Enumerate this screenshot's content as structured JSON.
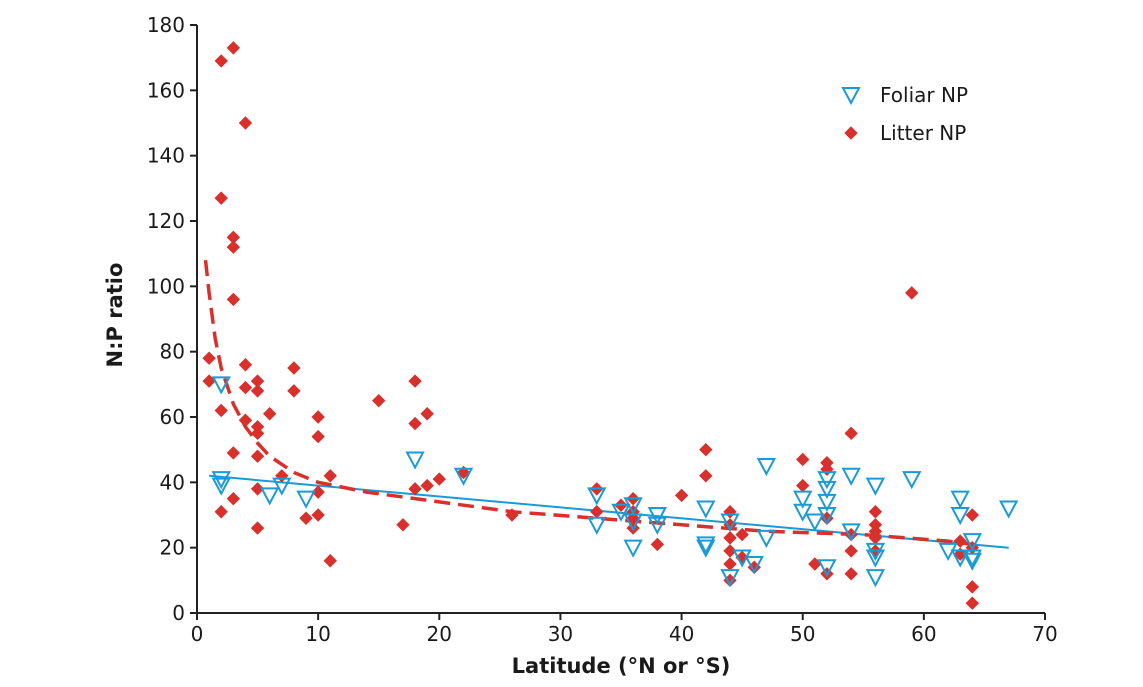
{
  "chart_data": {
    "type": "scatter",
    "xlabel": "Latitude (°N or °S)",
    "ylabel": "N:P ratio",
    "xlim": [
      0,
      70
    ],
    "ylim": [
      0,
      180
    ],
    "x_ticks": [
      0,
      10,
      20,
      30,
      40,
      50,
      60,
      70
    ],
    "y_ticks": [
      0,
      20,
      40,
      60,
      80,
      100,
      120,
      140,
      160,
      180
    ],
    "grid": false,
    "legend_position": "top-right",
    "series": [
      {
        "name": "Foliar NP",
        "marker": "open-down-triangle",
        "color": "#1a9ad6",
        "points": [
          [
            2,
            70
          ],
          [
            2,
            41
          ],
          [
            2,
            39
          ],
          [
            6,
            36
          ],
          [
            7,
            39
          ],
          [
            9,
            35
          ],
          [
            18,
            47
          ],
          [
            22,
            42
          ],
          [
            33,
            36
          ],
          [
            33,
            27
          ],
          [
            35,
            31
          ],
          [
            36,
            33
          ],
          [
            36,
            28
          ],
          [
            36,
            20
          ],
          [
            38,
            30
          ],
          [
            38,
            27
          ],
          [
            42,
            32
          ],
          [
            42,
            21
          ],
          [
            42,
            20
          ],
          [
            44,
            28
          ],
          [
            44,
            11
          ],
          [
            45,
            17
          ],
          [
            46,
            15
          ],
          [
            47,
            45
          ],
          [
            47,
            23
          ],
          [
            50,
            35
          ],
          [
            50,
            31
          ],
          [
            51,
            28
          ],
          [
            52,
            41
          ],
          [
            52,
            38
          ],
          [
            52,
            34
          ],
          [
            52,
            30
          ],
          [
            52,
            14
          ],
          [
            54,
            42
          ],
          [
            54,
            25
          ],
          [
            56,
            39
          ],
          [
            56,
            19
          ],
          [
            56,
            17
          ],
          [
            56,
            11
          ],
          [
            59,
            41
          ],
          [
            62,
            19
          ],
          [
            63,
            35
          ],
          [
            63,
            30
          ],
          [
            63,
            17
          ],
          [
            64,
            22
          ],
          [
            64,
            17
          ],
          [
            64,
            16
          ],
          [
            67,
            32
          ]
        ]
      },
      {
        "name": "Litter NP",
        "marker": "filled-diamond",
        "color": "#d9302c",
        "points": [
          [
            1,
            78
          ],
          [
            1,
            71
          ],
          [
            2,
            169
          ],
          [
            2,
            127
          ],
          [
            2,
            62
          ],
          [
            2,
            31
          ],
          [
            3,
            173
          ],
          [
            3,
            115
          ],
          [
            3,
            112
          ],
          [
            3,
            96
          ],
          [
            3,
            49
          ],
          [
            3,
            35
          ],
          [
            4,
            150
          ],
          [
            4,
            76
          ],
          [
            4,
            69
          ],
          [
            4,
            59
          ],
          [
            5,
            71
          ],
          [
            5,
            68
          ],
          [
            5,
            57
          ],
          [
            5,
            55
          ],
          [
            5,
            48
          ],
          [
            5,
            38
          ],
          [
            5,
            26
          ],
          [
            6,
            61
          ],
          [
            7,
            42
          ],
          [
            8,
            75
          ],
          [
            8,
            68
          ],
          [
            9,
            29
          ],
          [
            10,
            60
          ],
          [
            10,
            54
          ],
          [
            10,
            37
          ],
          [
            10,
            30
          ],
          [
            11,
            42
          ],
          [
            11,
            16
          ],
          [
            15,
            65
          ],
          [
            17,
            27
          ],
          [
            18,
            71
          ],
          [
            18,
            58
          ],
          [
            18,
            38
          ],
          [
            19,
            61
          ],
          [
            19,
            39
          ],
          [
            20,
            41
          ],
          [
            22,
            43
          ],
          [
            26,
            30
          ],
          [
            33,
            38
          ],
          [
            33,
            31
          ],
          [
            35,
            33
          ],
          [
            36,
            35
          ],
          [
            36,
            31
          ],
          [
            36,
            29
          ],
          [
            36,
            26
          ],
          [
            38,
            21
          ],
          [
            40,
            36
          ],
          [
            42,
            50
          ],
          [
            42,
            42
          ],
          [
            44,
            31
          ],
          [
            44,
            27
          ],
          [
            44,
            23
          ],
          [
            44,
            19
          ],
          [
            44,
            15
          ],
          [
            44,
            10
          ],
          [
            45,
            24
          ],
          [
            45,
            17
          ],
          [
            46,
            14
          ],
          [
            50,
            47
          ],
          [
            50,
            39
          ],
          [
            51,
            15
          ],
          [
            52,
            46
          ],
          [
            52,
            44
          ],
          [
            52,
            29
          ],
          [
            52,
            12
          ],
          [
            54,
            55
          ],
          [
            54,
            24
          ],
          [
            54,
            19
          ],
          [
            54,
            12
          ],
          [
            56,
            31
          ],
          [
            56,
            27
          ],
          [
            56,
            25
          ],
          [
            56,
            23
          ],
          [
            56,
            19
          ],
          [
            59,
            98
          ],
          [
            63,
            22
          ],
          [
            63,
            18
          ],
          [
            64,
            30
          ],
          [
            64,
            20
          ],
          [
            64,
            8
          ],
          [
            64,
            3
          ]
        ]
      }
    ],
    "trend_lines": [
      {
        "series": "Foliar NP",
        "style": "solid",
        "color": "#1a9ad6",
        "points": [
          [
            1,
            42
          ],
          [
            67,
            20
          ]
        ]
      },
      {
        "series": "Litter NP",
        "style": "dashed",
        "color": "#d9302c",
        "points": [
          [
            0.7,
            108
          ],
          [
            1,
            98
          ],
          [
            1.5,
            84
          ],
          [
            2,
            75
          ],
          [
            3,
            64
          ],
          [
            4,
            57
          ],
          [
            5,
            52
          ],
          [
            6,
            48
          ],
          [
            8,
            43
          ],
          [
            10,
            40
          ],
          [
            14,
            37
          ],
          [
            20,
            34
          ],
          [
            26,
            31
          ],
          [
            33,
            29
          ],
          [
            40,
            27
          ],
          [
            47,
            25
          ],
          [
            55,
            24
          ],
          [
            62,
            22
          ],
          [
            64,
            21
          ]
        ]
      }
    ]
  }
}
